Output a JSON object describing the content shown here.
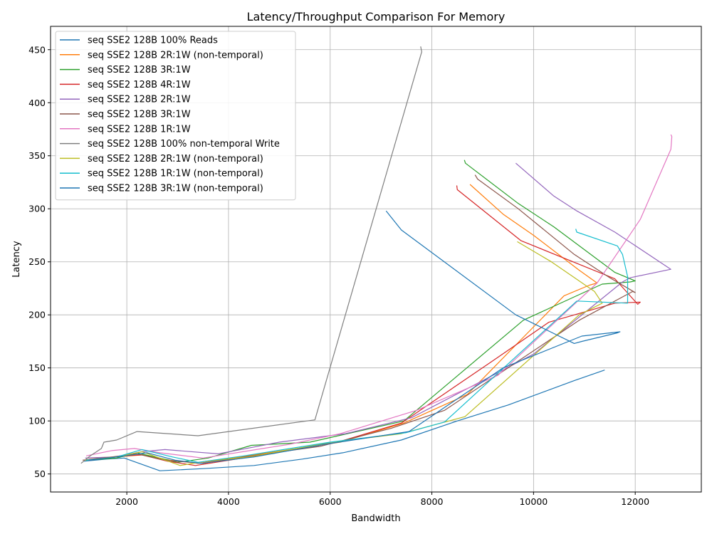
{
  "chart_data": {
    "type": "line",
    "title": "Latency/Throughput Comparison For Memory",
    "xlabel": "Bandwidth",
    "ylabel": "Latency",
    "xlim": [
      500,
      13300
    ],
    "ylim": [
      33,
      472
    ],
    "xticks": [
      2000,
      4000,
      6000,
      8000,
      10000,
      12000
    ],
    "yticks": [
      50,
      100,
      150,
      200,
      250,
      300,
      350,
      400,
      450
    ],
    "grid": true,
    "legend_position": "top-left",
    "series": [
      {
        "name": "seq SSE2 128B 100% Reads",
        "color": "#1f77b4",
        "x": [
          1150,
          1600,
          1950,
          2650,
          3500,
          4500,
          5450,
          6250,
          7400,
          8500,
          9500,
          10800,
          11400
        ],
        "y": [
          62,
          64,
          65,
          53,
          55,
          58,
          64,
          70,
          82,
          100,
          115,
          138,
          148
        ]
      },
      {
        "name": "seq SSE2 128B 2R:1W (non-temporal)",
        "color": "#ff7f0e",
        "x": [
          1200,
          1800,
          2300,
          2850,
          3400,
          4500,
          6200,
          7450,
          8700,
          10600,
          11100,
          11250,
          10900,
          10000,
          9400,
          8750
        ],
        "y": [
          65,
          66,
          68,
          63,
          60,
          68,
          80,
          98,
          125,
          218,
          228,
          230,
          242,
          275,
          295,
          323
        ]
      },
      {
        "name": "seq SSE2 128B 3R:1W",
        "color": "#2ca02c",
        "x": [
          1200,
          1800,
          2200,
          3000,
          3600,
          4450,
          5600,
          7450,
          9800,
          11350,
          11900,
          12000,
          11600,
          10400,
          9700,
          8660,
          8640
        ],
        "y": [
          63,
          65,
          70,
          61,
          65,
          77,
          80,
          100,
          195,
          229,
          231,
          232,
          240,
          283,
          305,
          343,
          346
        ]
      },
      {
        "name": "seq SSE2 128B 4R:1W",
        "color": "#d62728",
        "x": [
          1250,
          1900,
          2300,
          2800,
          3350,
          4550,
          6150,
          7400,
          9300,
          10300,
          11600,
          12100,
          12050,
          11600,
          9750,
          8500,
          8490
        ],
        "y": [
          63,
          67,
          68,
          62,
          58,
          67,
          80,
          98,
          160,
          193,
          211,
          212,
          210,
          234,
          270,
          318,
          322
        ]
      },
      {
        "name": "seq SSE2 128B 2R:1W",
        "color": "#9467bd",
        "x": [
          1180,
          1750,
          2300,
          2750,
          3800,
          5000,
          6300,
          7600,
          10000,
          11750,
          11900,
          12700,
          11600,
          10850,
          10400,
          9650
        ],
        "y": [
          65,
          66,
          71,
          73,
          69,
          80,
          88,
          103,
          163,
          231,
          235,
          243,
          278,
          298,
          312,
          343
        ]
      },
      {
        "name": "seq SSE2 128B 3R:1W",
        "color": "#8c564b",
        "x": [
          1130,
          1700,
          2200,
          2750,
          3500,
          4450,
          5800,
          7200,
          8250,
          10900,
          11950,
          12000,
          11500,
          10800,
          9700,
          8900,
          8850
        ],
        "y": [
          63,
          66,
          69,
          63,
          60,
          67,
          76,
          93,
          110,
          195,
          222,
          221,
          235,
          257,
          300,
          328,
          332
        ]
      },
      {
        "name": "seq SSE2 128B 1R:1W",
        "color": "#e377c2",
        "x": [
          1200,
          1700,
          2150,
          2650,
          3500,
          5200,
          6200,
          7700,
          9300,
          11250,
          12100,
          12700,
          12720,
          12700
        ],
        "y": [
          67,
          72,
          74,
          70,
          65,
          78,
          88,
          110,
          143,
          230,
          290,
          356,
          368,
          370
        ]
      },
      {
        "name": "seq SSE2 128B 100% non-temporal Write",
        "color": "#7f7f7f",
        "x": [
          1100,
          1280,
          1500,
          1550,
          1800,
          2200,
          3400,
          5700,
          7800,
          7780
        ],
        "y": [
          60,
          67,
          74,
          80,
          82,
          90,
          86,
          101,
          448,
          453
        ]
      },
      {
        "name": "seq SSE2 128B 2R:1W (non-temporal)",
        "color": "#bcbd22",
        "x": [
          1180,
          1800,
          2300,
          3050,
          3550,
          4400,
          6050,
          7400,
          8650,
          10900,
          11350,
          11200,
          10350,
          9680
        ],
        "y": [
          63,
          66,
          71,
          58,
          62,
          66,
          80,
          88,
          104,
          200,
          211,
          222,
          250,
          269
        ]
      },
      {
        "name": "seq SSE2 128B 1R:1W (non-temporal)",
        "color": "#17becf",
        "x": [
          1200,
          1800,
          2300,
          2900,
          3400,
          4300,
          6000,
          7500,
          8250,
          10850,
          11850,
          11850,
          11750,
          11650,
          10850,
          10830
        ],
        "y": [
          63,
          66,
          73,
          66,
          61,
          67,
          80,
          89,
          99,
          213,
          211,
          236,
          257,
          265,
          278,
          281
        ]
      },
      {
        "name": "seq SSE2 128B 3R:1W (non-temporal)",
        "color": "#1f77b4",
        "x": [
          1250,
          1800,
          2400,
          2950,
          3450,
          4500,
          5900,
          7550,
          9400,
          10950,
          11700,
          11650,
          10950,
          10800,
          9650,
          7400,
          7100
        ],
        "y": [
          63,
          66,
          70,
          63,
          60,
          66,
          78,
          90,
          150,
          180,
          184,
          183,
          175,
          173,
          200,
          280,
          298
        ]
      }
    ]
  }
}
